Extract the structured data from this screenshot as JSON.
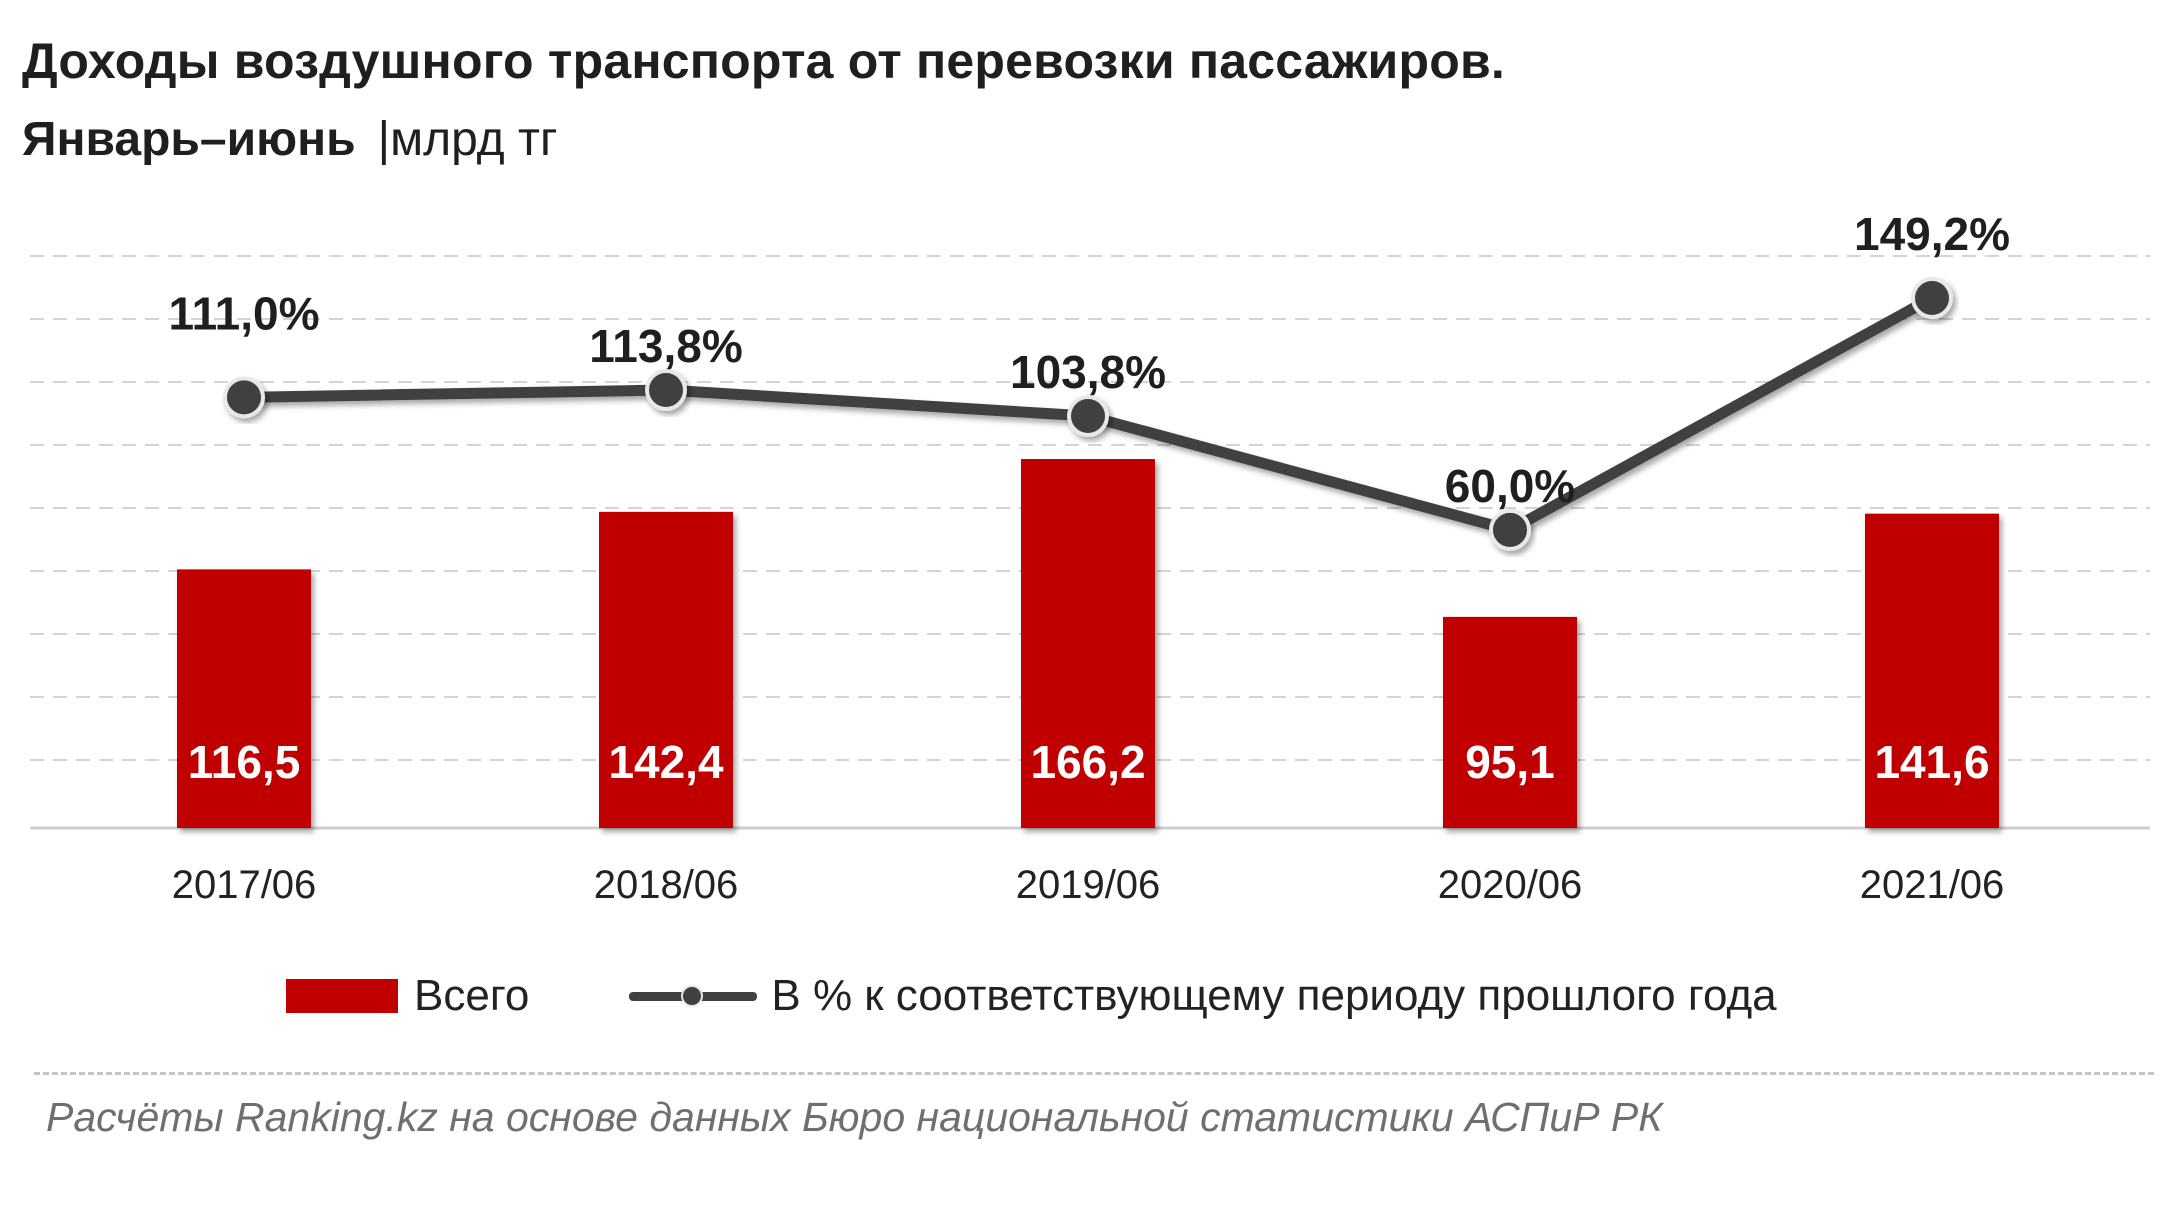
{
  "header": {
    "title": "Доходы воздушного транспорта от перевозки пассажиров.",
    "subtitle": "Январь–июнь",
    "unit_sep": "|",
    "unit": "млрд тг"
  },
  "chart_data": {
    "type": "bar",
    "categories": [
      "2017/06",
      "2018/06",
      "2019/06",
      "2020/06",
      "2021/06"
    ],
    "series": [
      {
        "name": "Всего",
        "kind": "bar",
        "color": "#c00000",
        "values": [
          116.5,
          142.4,
          166.2,
          95.1,
          141.6
        ],
        "labels": [
          "116,5",
          "142,4",
          "166,2",
          "95,1",
          "141,6"
        ]
      },
      {
        "name": "В % к соответствующему периоду прошлого года",
        "kind": "line",
        "color": "#404040",
        "values": [
          111.0,
          113.8,
          103.8,
          60.0,
          149.2
        ],
        "labels": [
          "111,0%",
          "113,8%",
          "103,8%",
          "60,0%",
          "149,2%"
        ]
      }
    ],
    "grid": true,
    "legend": "bottom"
  },
  "legend": {
    "bar_label": "Всего",
    "line_label": "В % к соответствующему периоду прошлого года"
  },
  "source": "Расчёты Ranking.kz на основе данных  Бюро национальной  статистики АСПиР РК"
}
